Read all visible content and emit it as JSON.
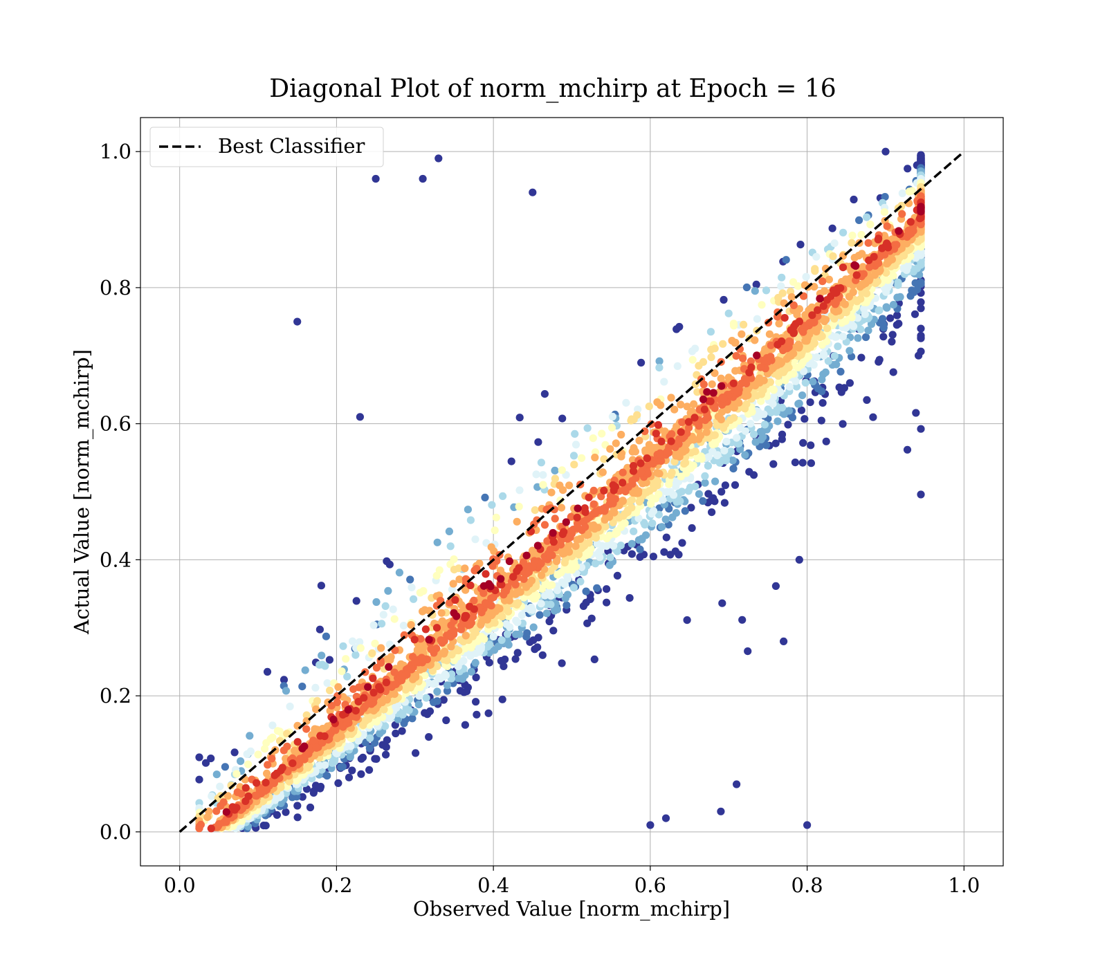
{
  "chart_data": {
    "type": "scatter",
    "title": "Diagonal Plot of norm_mchirp at Epoch = 16",
    "xlabel": "Observed Value [norm_mchirp]",
    "ylabel": "Actual Value [norm_mchirp]",
    "xlim": [
      -0.05,
      1.05
    ],
    "ylim": [
      -0.05,
      1.05
    ],
    "x_ticks": [
      0.0,
      0.2,
      0.4,
      0.6,
      0.8,
      1.0
    ],
    "y_ticks": [
      0.0,
      0.2,
      0.4,
      0.6,
      0.8,
      1.0
    ],
    "x_tick_labels": [
      "0.0",
      "0.2",
      "0.4",
      "0.6",
      "0.8",
      "1.0"
    ],
    "y_tick_labels": [
      "0.0",
      "0.2",
      "0.4",
      "0.6",
      "0.8",
      "1.0"
    ],
    "grid": true,
    "legend": {
      "position": "top-left",
      "entries": [
        {
          "label": "Best Classifier",
          "style": "dashed",
          "color": "#000000"
        }
      ]
    },
    "reference_line": {
      "name": "Best Classifier",
      "x": [
        0.0,
        1.0
      ],
      "y": [
        0.0,
        1.0
      ],
      "color": "#000000",
      "style": "dashed"
    },
    "colormap": "RdYlBu_r (point density)",
    "colormap_colors": [
      "#313695",
      "#4575b4",
      "#74add1",
      "#abd9e9",
      "#e0f3f8",
      "#ffffbf",
      "#fee090",
      "#fdae61",
      "#f46d43",
      "#d73027",
      "#a50026"
    ],
    "representative_points": [
      {
        "x": 0.15,
        "y": 0.75
      },
      {
        "x": 0.23,
        "y": 0.61
      },
      {
        "x": 0.33,
        "y": 0.99
      },
      {
        "x": 0.25,
        "y": 0.96
      },
      {
        "x": 0.31,
        "y": 0.96
      },
      {
        "x": 0.45,
        "y": 0.94
      },
      {
        "x": 0.77,
        "y": 0.28
      },
      {
        "x": 0.79,
        "y": 0.4
      },
      {
        "x": 0.8,
        "y": 0.01
      },
      {
        "x": 0.6,
        "y": 0.01
      },
      {
        "x": 0.62,
        "y": 0.02
      },
      {
        "x": 0.71,
        "y": 0.07
      },
      {
        "x": 0.69,
        "y": 0.03
      },
      {
        "x": 0.05,
        "y": 0.01
      },
      {
        "x": 0.94,
        "y": 0.98
      },
      {
        "x": 0.9,
        "y": 1.0
      }
    ]
  }
}
